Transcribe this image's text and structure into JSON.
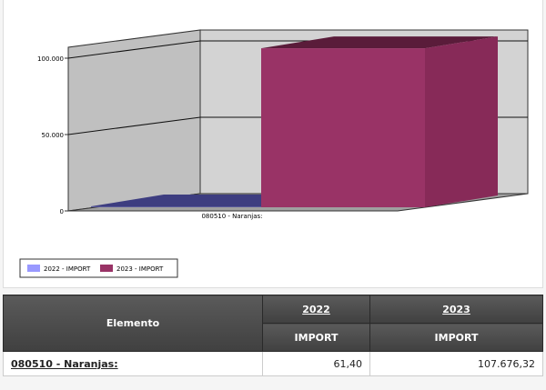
{
  "chart_data": {
    "type": "bar",
    "3d": true,
    "categories": [
      "080510 - Naranjas:"
    ],
    "series": [
      {
        "name": "2022 - IMPORT",
        "values": [
          61.4
        ],
        "color": "#9999ff"
      },
      {
        "name": "2023 - IMPORT",
        "values": [
          107676.32
        ],
        "color": "#993366"
      }
    ],
    "yticks": [
      "0",
      "50.000",
      "100.000"
    ],
    "ytick_values": [
      0,
      50000,
      100000
    ],
    "ylim": [
      0,
      107676.32
    ],
    "grid": true,
    "legend_placement": "bottom-left"
  },
  "table": {
    "header": {
      "element": "Elemento",
      "years": [
        "2022",
        "2023"
      ],
      "measures": [
        "IMPORT",
        "IMPORT"
      ]
    },
    "rows": [
      {
        "element": "080510 - Naranjas:",
        "values": [
          "61,40",
          "107.676,32"
        ]
      }
    ]
  }
}
